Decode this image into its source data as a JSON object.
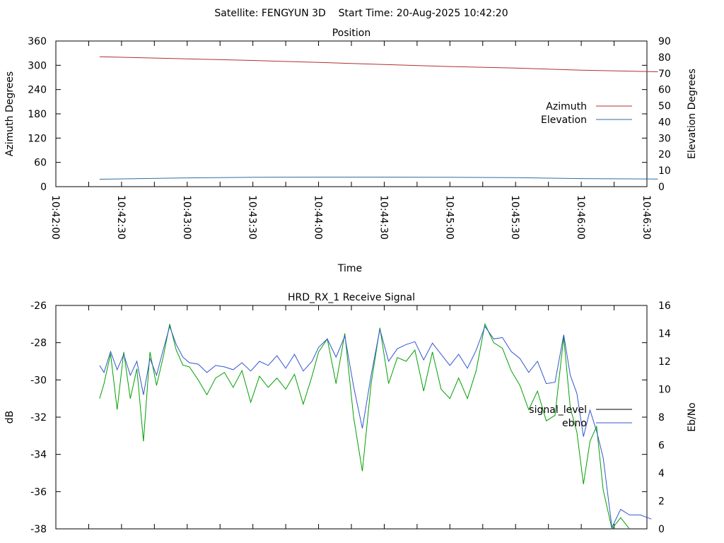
{
  "header": {
    "title": "Satellite: FENGYUN 3D    Start Time: 20-Aug-2025 10:42:20"
  },
  "chart_data": [
    {
      "type": "line",
      "title": "Position",
      "xlabel": "Time",
      "ylabel": "Azimuth Degrees",
      "y2label": "Elevation Degrees",
      "x_ticks": [
        "10:42:00",
        "10:42:30",
        "10:43:00",
        "10:43:30",
        "10:44:00",
        "10:44:30",
        "10:45:00",
        "10:45:30",
        "10:46:00",
        "10:46:30"
      ],
      "xlim": [
        "10:42:00",
        "10:46:30"
      ],
      "ylim": [
        0,
        360
      ],
      "y_ticks": [
        0,
        60,
        120,
        180,
        240,
        300,
        360
      ],
      "y2lim": [
        0,
        90
      ],
      "y2_ticks": [
        0,
        10,
        20,
        30,
        40,
        50,
        60,
        70,
        80,
        90
      ],
      "legend_position": "right",
      "series": [
        {
          "name": "Azimuth",
          "axis": "y",
          "color": "#b03030",
          "x": [
            "10:42:20",
            "10:43:00",
            "10:43:30",
            "10:44:00",
            "10:44:30",
            "10:45:00",
            "10:45:30",
            "10:46:00",
            "10:46:35"
          ],
          "values": [
            321,
            316,
            312,
            307,
            302,
            297,
            293,
            288,
            284
          ]
        },
        {
          "name": "Elevation",
          "axis": "y2",
          "color": "#2f6ea0",
          "x": [
            "10:42:20",
            "10:43:00",
            "10:43:30",
            "10:44:00",
            "10:44:30",
            "10:45:00",
            "10:45:30",
            "10:46:00",
            "10:46:35"
          ],
          "values": [
            4.6,
            5.4,
            5.8,
            5.9,
            5.9,
            5.8,
            5.6,
            5.0,
            4.7
          ]
        }
      ]
    },
    {
      "type": "line",
      "title": "HRD_RX_1 Receive Signal",
      "ylabel": "dB",
      "y2label": "Eb/No",
      "xlim": [
        "10:42:00",
        "10:46:30"
      ],
      "ylim": [
        -38,
        -26
      ],
      "y_ticks": [
        -38,
        -36,
        -34,
        -32,
        -30,
        -28,
        -26
      ],
      "y2lim": [
        0,
        16
      ],
      "y2_ticks": [
        0,
        2,
        4,
        6,
        8,
        10,
        12,
        14,
        16
      ],
      "legend_position": "right",
      "series": [
        {
          "name": "signal_level",
          "axis": "y",
          "color": "#00a000",
          "x": [
            "10:42:20",
            "10:42:22",
            "10:42:25",
            "10:42:28",
            "10:42:31",
            "10:42:34",
            "10:42:37",
            "10:42:40",
            "10:42:43",
            "10:42:46",
            "10:42:49",
            "10:42:52",
            "10:42:55",
            "10:42:58",
            "10:43:01",
            "10:43:05",
            "10:43:09",
            "10:43:13",
            "10:43:17",
            "10:43:21",
            "10:43:25",
            "10:43:29",
            "10:43:33",
            "10:43:37",
            "10:43:41",
            "10:43:45",
            "10:43:49",
            "10:43:53",
            "10:43:57",
            "10:44:00",
            "10:44:04",
            "10:44:08",
            "10:44:12",
            "10:44:16",
            "10:44:20",
            "10:44:24",
            "10:44:28",
            "10:44:32",
            "10:44:36",
            "10:44:40",
            "10:44:44",
            "10:44:48",
            "10:44:52",
            "10:44:56",
            "10:45:00",
            "10:45:04",
            "10:45:08",
            "10:45:12",
            "10:45:16",
            "10:45:20",
            "10:45:24",
            "10:45:28",
            "10:45:32",
            "10:45:36",
            "10:45:40",
            "10:45:44",
            "10:45:48",
            "10:45:52",
            "10:45:55",
            "10:45:58",
            "10:46:01",
            "10:46:04",
            "10:46:07",
            "10:46:10",
            "10:46:14",
            "10:46:18",
            "10:46:22"
          ],
          "values": [
            -31.0,
            -30.2,
            -28.6,
            -31.6,
            -28.5,
            -31.0,
            -29.4,
            -33.3,
            -28.5,
            -30.3,
            -28.8,
            -27.0,
            -28.4,
            -29.2,
            -29.3,
            -30.0,
            -30.8,
            -29.9,
            -29.6,
            -30.4,
            -29.5,
            -31.2,
            -29.8,
            -30.4,
            -29.9,
            -30.5,
            -29.7,
            -31.3,
            -29.8,
            -28.5,
            -27.8,
            -30.2,
            -27.5,
            -32.0,
            -34.9,
            -30.2,
            -27.2,
            -30.2,
            -28.8,
            -29.0,
            -28.4,
            -30.6,
            -28.5,
            -30.5,
            -31.0,
            -29.9,
            -31.0,
            -29.5,
            -27.0,
            -28.0,
            -28.3,
            -29.5,
            -30.3,
            -31.6,
            -30.6,
            -32.2,
            -31.9,
            -27.7,
            -31.5,
            -32.8,
            -35.6,
            -33.3,
            -32.5,
            -35.9,
            -38.0,
            -37.4,
            -38.0
          ]
        },
        {
          "name": "ebno",
          "axis": "y2",
          "color": "#3355cc",
          "x": [
            "10:42:20",
            "10:42:22",
            "10:42:25",
            "10:42:28",
            "10:42:31",
            "10:42:34",
            "10:42:37",
            "10:42:40",
            "10:42:43",
            "10:42:46",
            "10:42:49",
            "10:42:52",
            "10:42:55",
            "10:42:58",
            "10:43:01",
            "10:43:05",
            "10:43:09",
            "10:43:13",
            "10:43:17",
            "10:43:21",
            "10:43:25",
            "10:43:29",
            "10:43:33",
            "10:43:37",
            "10:43:41",
            "10:43:45",
            "10:43:49",
            "10:43:53",
            "10:43:57",
            "10:44:00",
            "10:44:04",
            "10:44:08",
            "10:44:12",
            "10:44:16",
            "10:44:20",
            "10:44:24",
            "10:44:28",
            "10:44:32",
            "10:44:36",
            "10:44:40",
            "10:44:44",
            "10:44:48",
            "10:44:52",
            "10:44:56",
            "10:45:00",
            "10:45:04",
            "10:45:08",
            "10:45:12",
            "10:45:16",
            "10:45:20",
            "10:45:24",
            "10:45:28",
            "10:45:32",
            "10:45:36",
            "10:45:40",
            "10:45:44",
            "10:45:48",
            "10:45:52",
            "10:45:55",
            "10:45:58",
            "10:46:01",
            "10:46:04",
            "10:46:07",
            "10:46:10",
            "10:46:14",
            "10:46:18",
            "10:46:22",
            "10:46:27",
            "10:46:32"
          ],
          "values": [
            11.7,
            11.2,
            12.7,
            11.4,
            12.5,
            11.0,
            12.0,
            9.6,
            12.2,
            11.0,
            12.8,
            14.5,
            13.2,
            12.3,
            11.9,
            11.8,
            11.2,
            11.7,
            11.6,
            11.4,
            11.9,
            11.3,
            12.0,
            11.7,
            12.4,
            11.5,
            12.5,
            11.3,
            12.0,
            13.0,
            13.6,
            12.3,
            13.8,
            10.2,
            7.2,
            11.0,
            14.3,
            12.0,
            12.9,
            13.2,
            13.4,
            12.1,
            13.3,
            12.5,
            11.7,
            12.5,
            11.5,
            12.8,
            14.5,
            13.6,
            13.7,
            12.7,
            12.2,
            11.2,
            12.0,
            10.4,
            10.5,
            13.9,
            11.0,
            9.7,
            6.6,
            8.5,
            7.0,
            5.1,
            0.1,
            1.4,
            1.0,
            1.0,
            0.7
          ]
        }
      ]
    }
  ]
}
